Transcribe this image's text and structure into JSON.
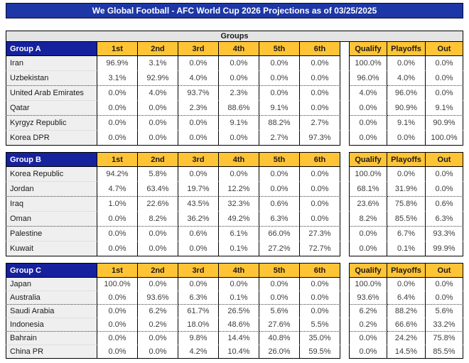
{
  "title": "We Global Football - AFC World Cup 2026 Projections as of 03/25/2025",
  "groups_banner": "Groups",
  "position_headers": [
    "1st",
    "2nd",
    "3rd",
    "4th",
    "5th",
    "6th"
  ],
  "outcome_headers": [
    "Qualify",
    "Playoffs",
    "Out"
  ],
  "cutoffs": {
    "dotted_line_after_rows": [
      2,
      4
    ]
  },
  "colors": {
    "title_bg": "#1d37a6",
    "group_header_bg": "#16219d",
    "column_header_gold": "#ffc436",
    "banner_bg": "#e4e4e4",
    "team_cell_bg": "#efefef"
  },
  "groups": [
    {
      "name": "Group A",
      "teams": [
        {
          "name": "Iran",
          "positions": [
            "96.9%",
            "3.1%",
            "0.0%",
            "0.0%",
            "0.0%",
            "0.0%"
          ],
          "outcomes": [
            "100.0%",
            "0.0%",
            "0.0%"
          ]
        },
        {
          "name": "Uzbekistan",
          "positions": [
            "3.1%",
            "92.9%",
            "4.0%",
            "0.0%",
            "0.0%",
            "0.0%"
          ],
          "outcomes": [
            "96.0%",
            "4.0%",
            "0.0%"
          ]
        },
        {
          "name": "United Arab Emirates",
          "positions": [
            "0.0%",
            "4.0%",
            "93.7%",
            "2.3%",
            "0.0%",
            "0.0%"
          ],
          "outcomes": [
            "4.0%",
            "96.0%",
            "0.0%"
          ]
        },
        {
          "name": "Qatar",
          "positions": [
            "0.0%",
            "0.0%",
            "2.3%",
            "88.6%",
            "9.1%",
            "0.0%"
          ],
          "outcomes": [
            "0.0%",
            "90.9%",
            "9.1%"
          ]
        },
        {
          "name": "Kyrgyz Republic",
          "positions": [
            "0.0%",
            "0.0%",
            "0.0%",
            "9.1%",
            "88.2%",
            "2.7%"
          ],
          "outcomes": [
            "0.0%",
            "9.1%",
            "90.9%"
          ]
        },
        {
          "name": "Korea DPR",
          "positions": [
            "0.0%",
            "0.0%",
            "0.0%",
            "0.0%",
            "2.7%",
            "97.3%"
          ],
          "outcomes": [
            "0.0%",
            "0.0%",
            "100.0%"
          ]
        }
      ]
    },
    {
      "name": "Group B",
      "teams": [
        {
          "name": "Korea Republic",
          "positions": [
            "94.2%",
            "5.8%",
            "0.0%",
            "0.0%",
            "0.0%",
            "0.0%"
          ],
          "outcomes": [
            "100.0%",
            "0.0%",
            "0.0%"
          ]
        },
        {
          "name": "Jordan",
          "positions": [
            "4.7%",
            "63.4%",
            "19.7%",
            "12.2%",
            "0.0%",
            "0.0%"
          ],
          "outcomes": [
            "68.1%",
            "31.9%",
            "0.0%"
          ]
        },
        {
          "name": "Iraq",
          "positions": [
            "1.0%",
            "22.6%",
            "43.5%",
            "32.3%",
            "0.6%",
            "0.0%"
          ],
          "outcomes": [
            "23.6%",
            "75.8%",
            "0.6%"
          ]
        },
        {
          "name": "Oman",
          "positions": [
            "0.0%",
            "8.2%",
            "36.2%",
            "49.2%",
            "6.3%",
            "0.0%"
          ],
          "outcomes": [
            "8.2%",
            "85.5%",
            "6.3%"
          ]
        },
        {
          "name": "Palestine",
          "positions": [
            "0.0%",
            "0.0%",
            "0.6%",
            "6.1%",
            "66.0%",
            "27.3%"
          ],
          "outcomes": [
            "0.0%",
            "6.7%",
            "93.3%"
          ]
        },
        {
          "name": "Kuwait",
          "positions": [
            "0.0%",
            "0.0%",
            "0.0%",
            "0.1%",
            "27.2%",
            "72.7%"
          ],
          "outcomes": [
            "0.0%",
            "0.1%",
            "99.9%"
          ]
        }
      ]
    },
    {
      "name": "Group C",
      "teams": [
        {
          "name": "Japan",
          "positions": [
            "100.0%",
            "0.0%",
            "0.0%",
            "0.0%",
            "0.0%",
            "0.0%"
          ],
          "outcomes": [
            "100.0%",
            "0.0%",
            "0.0%"
          ]
        },
        {
          "name": "Australia",
          "positions": [
            "0.0%",
            "93.6%",
            "6.3%",
            "0.1%",
            "0.0%",
            "0.0%"
          ],
          "outcomes": [
            "93.6%",
            "6.4%",
            "0.0%"
          ]
        },
        {
          "name": "Saudi Arabia",
          "positions": [
            "0.0%",
            "6.2%",
            "61.7%",
            "26.5%",
            "5.6%",
            "0.0%"
          ],
          "outcomes": [
            "6.2%",
            "88.2%",
            "5.6%"
          ]
        },
        {
          "name": "Indonesia",
          "positions": [
            "0.0%",
            "0.2%",
            "18.0%",
            "48.6%",
            "27.6%",
            "5.5%"
          ],
          "outcomes": [
            "0.2%",
            "66.6%",
            "33.2%"
          ]
        },
        {
          "name": "Bahrain",
          "positions": [
            "0.0%",
            "0.0%",
            "9.8%",
            "14.4%",
            "40.8%",
            "35.0%"
          ],
          "outcomes": [
            "0.0%",
            "24.2%",
            "75.8%"
          ]
        },
        {
          "name": "China PR",
          "positions": [
            "0.0%",
            "0.0%",
            "4.2%",
            "10.4%",
            "26.0%",
            "59.5%"
          ],
          "outcomes": [
            "0.0%",
            "14.5%",
            "85.5%"
          ]
        }
      ]
    }
  ]
}
